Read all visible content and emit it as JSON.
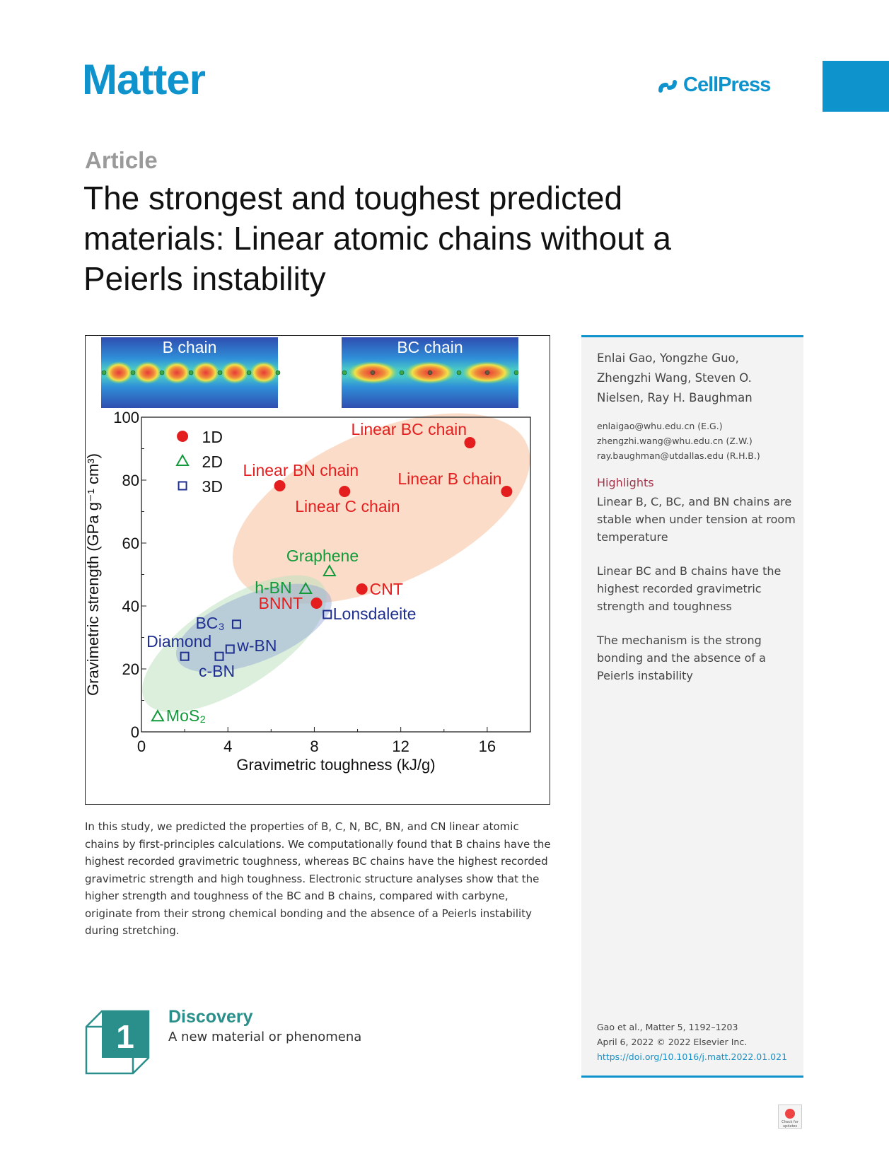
{
  "header": {
    "journal": "Matter",
    "publisher": "CellPress",
    "section": "Article"
  },
  "title": "The strongest and toughest predicted materials: Linear atomic chains without a Peierls instability",
  "figure": {
    "inset_left": "B chain",
    "inset_right": "BC chain"
  },
  "chart_data": {
    "type": "scatter",
    "xlabel": "Gravimetric toughness (kJ/g)",
    "ylabel": "Gravimetric strength (GPa g⁻¹ cm³)",
    "xlim": [
      0,
      18
    ],
    "ylim": [
      0,
      100
    ],
    "xticks": [
      "0",
      "4",
      "8",
      "12",
      "16"
    ],
    "yticks": [
      "0",
      "20",
      "40",
      "60",
      "80",
      "100"
    ],
    "legend": {
      "placement": "top-left",
      "entries": [
        "1D",
        "2D",
        "3D"
      ]
    },
    "colors": {
      "1D": "#e41e1e",
      "2D": "#109a3a",
      "3D": "#1f2f8f"
    },
    "series": [
      {
        "name": "1D",
        "marker": "circle",
        "points": [
          {
            "label": "Linear BC chain",
            "x": 15.2,
            "y": 91.9
          },
          {
            "label": "Linear BN chain",
            "x": 6.4,
            "y": 78.2
          },
          {
            "label": "Linear C chain",
            "x": 9.4,
            "y": 76.4
          },
          {
            "label": "Linear B chain",
            "x": 16.9,
            "y": 76.4
          },
          {
            "label": "CNT",
            "x": 10.2,
            "y": 45.4
          },
          {
            "label": "BNNT",
            "x": 8.1,
            "y": 40.9
          }
        ]
      },
      {
        "name": "2D",
        "marker": "triangle",
        "points": [
          {
            "label": "Graphene",
            "x": 8.7,
            "y": 51.0
          },
          {
            "label": "h-BN",
            "x": 7.6,
            "y": 45.4
          },
          {
            "label": "MoS₂",
            "x": 0.75,
            "y": 4.9
          }
        ]
      },
      {
        "name": "3D",
        "marker": "square",
        "points": [
          {
            "label": "Lonsdaleite",
            "x": 8.6,
            "y": 37.3
          },
          {
            "label": "BC₃",
            "x": 4.4,
            "y": 34.2
          },
          {
            "label": "Diamond",
            "x": 2.0,
            "y": 24.0
          },
          {
            "label": "c-BN",
            "x": 3.6,
            "y": 24.0
          },
          {
            "label": "w-BN",
            "x": 4.1,
            "y": 26.3
          }
        ]
      }
    ]
  },
  "abstract": "In this study, we predicted the properties of B, C, N, BC, BN, and CN linear atomic chains by first-principles calculations. We computationally found that B chains have the highest recorded gravimetric toughness, whereas BC chains have the highest recorded gravimetric strength and high toughness. Electronic structure analyses show that the higher strength and toughness of the BC and B chains, compared with carbyne, originate from their strong chemical bonding and the absence of a Peierls instability during stretching.",
  "sidebar": {
    "authors": "Enlai Gao, Yongzhe Guo, Zhengzhi Wang, Steven O. Nielsen, Ray H. Baughman",
    "emails": [
      "enlaigao@whu.edu.cn (E.G.)",
      "zhengzhi.wang@whu.edu.cn (Z.W.)",
      "ray.baughman@utdallas.edu (R.H.B.)"
    ],
    "highlights_title": "Highlights",
    "highlights": [
      "Linear B, C, BC, and BN chains are stable when under tension at room temperature",
      "Linear BC and B chains have the highest recorded gravimetric strength and toughness",
      "The mechanism is the strong bonding and the absence of a Peierls instability"
    ],
    "citation": "Gao et al., Matter 5, 1192–1203",
    "date": "April 6, 2022 © 2022 Elsevier Inc.",
    "doi": "https://doi.org/10.1016/j.matt.2022.01.021"
  },
  "discovery": {
    "number": "1",
    "title": "Discovery",
    "subtitle": "A new material or phenomena"
  },
  "badge": "Check for updates"
}
